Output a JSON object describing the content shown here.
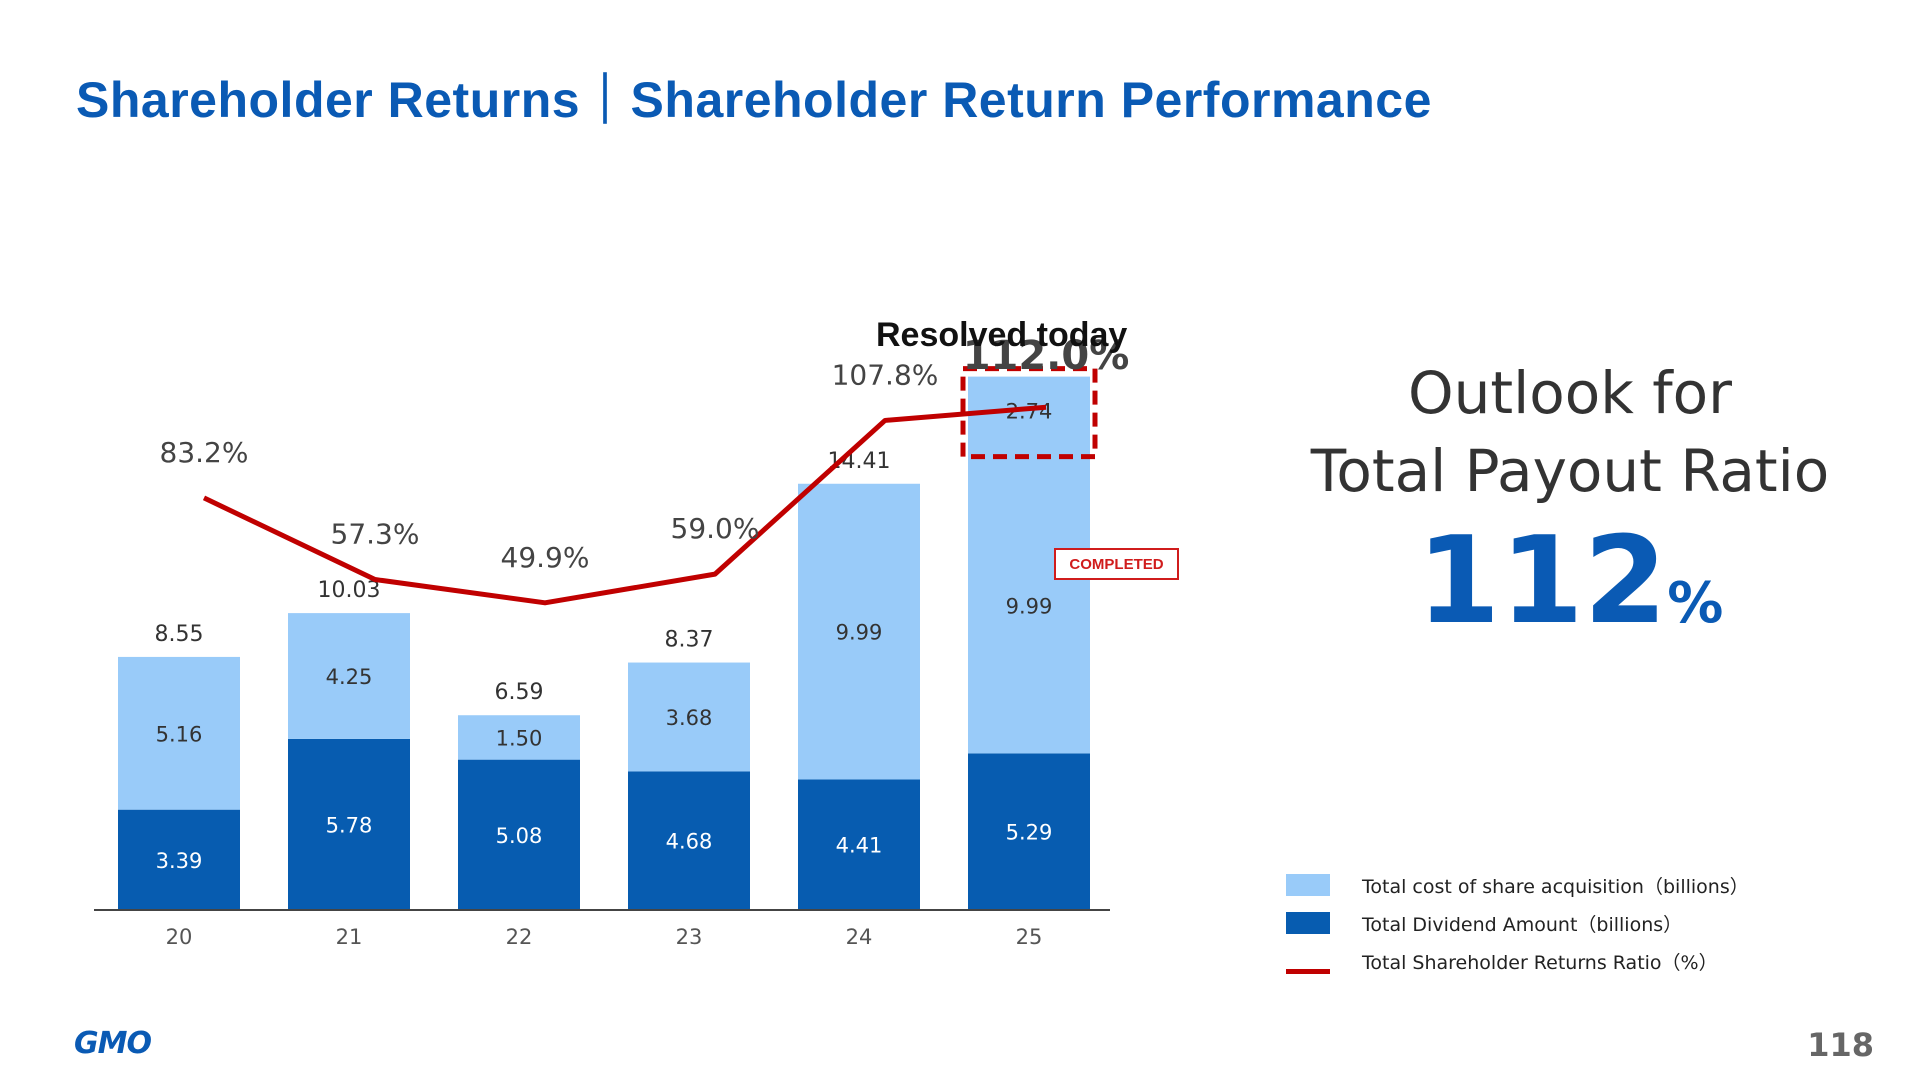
{
  "title": "Shareholder Returns｜Shareholder Return Performance",
  "annotation_resolved": "Resolved today",
  "annotation_completed": "COMPLETED",
  "outlook": {
    "line1": "Outlook for",
    "line2": "Total Payout Ratio",
    "value": "112",
    "unit": "%"
  },
  "footer": {
    "logo": "GMO",
    "page": "118"
  },
  "colors": {
    "acquisition": "#99cbf9",
    "dividend": "#075cb0",
    "ratio": "#c00000",
    "title": "#0a5ab4"
  },
  "chart_data": {
    "type": "bar",
    "stacked": true,
    "categories": [
      "20",
      "21",
      "22",
      "23",
      "24",
      "25"
    ],
    "series": [
      {
        "name": "Total Dividend Amount（billions）",
        "values": [
          3.39,
          5.78,
          5.08,
          4.68,
          4.41,
          5.29
        ]
      },
      {
        "name": "Total cost of share acquisition（billions）",
        "values": [
          5.16,
          4.25,
          1.5,
          3.68,
          9.99,
          12.73
        ],
        "segment_labels": [
          [
            "5.16"
          ],
          [
            "4.25"
          ],
          [
            "1.50"
          ],
          [
            "3.68"
          ],
          [
            "9.99"
          ],
          [
            "9.99",
            "2.74"
          ]
        ]
      }
    ],
    "totals": [
      "8.55",
      "10.03",
      "6.59",
      "8.37",
      "14.41",
      ""
    ],
    "line": {
      "name": "Total Shareholder Returns Ratio（%）",
      "values": [
        83.2,
        57.3,
        49.9,
        59.0,
        107.8,
        112.0
      ],
      "labels": [
        "83.2%",
        "57.3%",
        "49.9%",
        "59.0%",
        "107.8%",
        "112.0%"
      ]
    },
    "highlight_segment": {
      "category": "25",
      "value": 2.74
    }
  },
  "legend": [
    {
      "label": "Total cost of share acquisition（billions）",
      "kind": "box",
      "color": "#99cbf9"
    },
    {
      "label": "Total Dividend Amount（billions）",
      "kind": "box",
      "color": "#075cb0"
    },
    {
      "label": "Total Shareholder Returns Ratio（%）",
      "kind": "line",
      "color": "#c00000"
    }
  ]
}
